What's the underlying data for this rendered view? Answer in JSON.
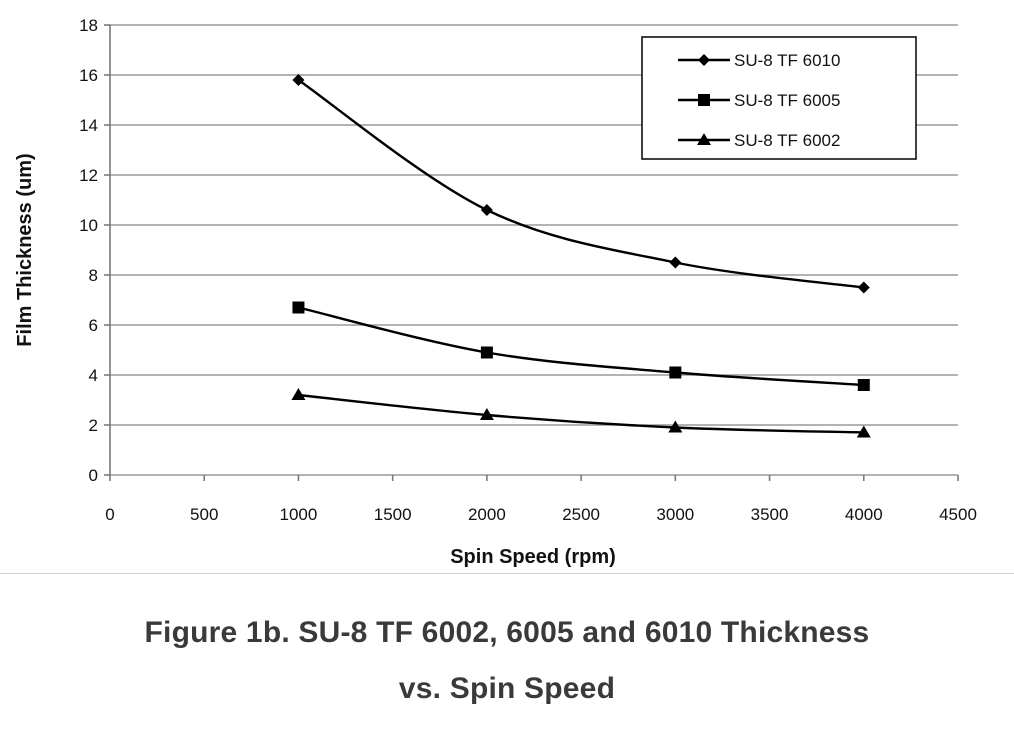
{
  "chart_data": {
    "type": "line",
    "xlabel": "Spin Speed (rpm)",
    "ylabel": "Film Thickness (um)",
    "xlim": [
      0,
      4500
    ],
    "ylim": [
      0,
      18
    ],
    "xticks": [
      0,
      500,
      1000,
      1500,
      2000,
      2500,
      3000,
      3500,
      4000,
      4500
    ],
    "yticks": [
      0,
      2,
      4,
      6,
      8,
      10,
      12,
      14,
      16,
      18
    ],
    "grid": "horizontal",
    "legend_position": "top-right",
    "x": [
      1000,
      2000,
      3000,
      4000
    ],
    "series": [
      {
        "name": "SU-8 TF 6010",
        "marker": "diamond",
        "values": [
          15.8,
          10.6,
          8.5,
          7.5
        ]
      },
      {
        "name": "SU-8 TF 6005",
        "marker": "square",
        "values": [
          6.7,
          4.9,
          4.1,
          3.6
        ]
      },
      {
        "name": "SU-8 TF 6002",
        "marker": "triangle",
        "values": [
          3.2,
          2.4,
          1.9,
          1.7
        ]
      }
    ]
  },
  "caption": {
    "line1": "Figure 1b. SU-8 TF 6002, 6005 and 6010 Thickness",
    "line2": "vs. Spin Speed"
  }
}
